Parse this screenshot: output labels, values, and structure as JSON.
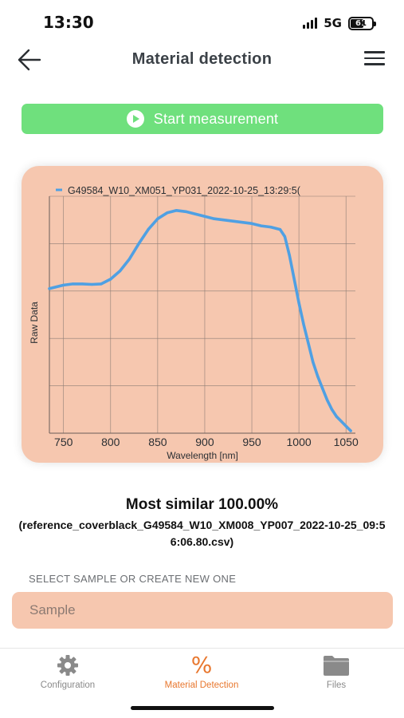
{
  "status": {
    "time": "13:30",
    "network": "5G",
    "battery_level": "61",
    "battery_fraction": 0.61
  },
  "header": {
    "title": "Material detection",
    "back_icon": "arrow-left-icon",
    "menu_icon": "hamburger-menu-icon"
  },
  "actions": {
    "start_label": "Start measurement",
    "start_icon": "play-circle-icon",
    "start_color": "#6fe07d"
  },
  "chart_data": {
    "type": "line",
    "title": "",
    "xlabel": "Wavelength [nm]",
    "ylabel": "Raw Data",
    "xlim": [
      735,
      1060
    ],
    "ylim": [
      0,
      1
    ],
    "xticks": [
      750,
      800,
      850,
      900,
      950,
      1000,
      1050
    ],
    "y_tick_count": 5,
    "y_tick_labels_shown": false,
    "grid": true,
    "legend": "top",
    "background": "#f6c7af",
    "series": [
      {
        "name": "G49584_W10_XM051_YP031_2022-10-25_13:29:5(",
        "color": "#4fa0e3",
        "x": [
          735,
          750,
          760,
          770,
          780,
          790,
          800,
          810,
          820,
          830,
          840,
          850,
          860,
          870,
          880,
          890,
          900,
          910,
          920,
          930,
          940,
          950,
          960,
          970,
          980,
          985,
          990,
          995,
          1000,
          1005,
          1010,
          1015,
          1020,
          1025,
          1030,
          1035,
          1040,
          1045,
          1050,
          1055
        ],
        "y": [
          0.61,
          0.625,
          0.63,
          0.63,
          0.628,
          0.63,
          0.65,
          0.685,
          0.735,
          0.8,
          0.86,
          0.905,
          0.93,
          0.94,
          0.935,
          0.925,
          0.915,
          0.905,
          0.9,
          0.895,
          0.89,
          0.885,
          0.875,
          0.87,
          0.86,
          0.83,
          0.75,
          0.65,
          0.55,
          0.46,
          0.38,
          0.3,
          0.24,
          0.19,
          0.14,
          0.1,
          0.07,
          0.05,
          0.03,
          0.01
        ]
      }
    ]
  },
  "result": {
    "title": "Most similar 100.00%",
    "file": "(reference_coverblack_G49584_W10_XM008_YP007_2022-10-25_09:56:06.80.csv)"
  },
  "sample": {
    "section_label": "SELECT SAMPLE OR CREATE NEW ONE",
    "placeholder": "Sample",
    "field_color": "#f6c7af"
  },
  "tabs": [
    {
      "label": "Configuration",
      "icon": "gear-icon",
      "active": false
    },
    {
      "label": "Material Detection",
      "icon": "percent-icon",
      "active": true,
      "glyph": "%"
    },
    {
      "label": "Files",
      "icon": "folder-icon",
      "active": false
    }
  ],
  "colors": {
    "accent": "#e8772e",
    "chart_line": "#4fa0e3"
  }
}
